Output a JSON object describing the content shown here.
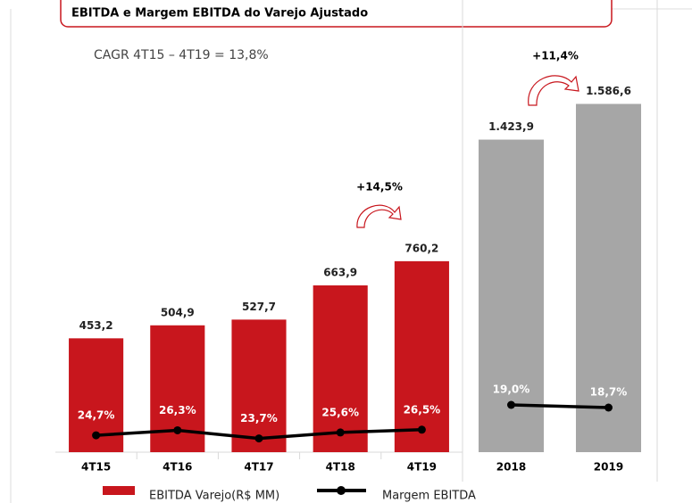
{
  "chart_data": [
    {
      "type": "bar",
      "title": "EBITDA e Margem EBITDA do Varejo Ajustado",
      "subtitle": "CAGR 4T15 – 4T19 = 13,8%",
      "annotation": "+14,5%",
      "categories": [
        "4T15",
        "4T16",
        "4T17",
        "4T18",
        "4T19"
      ],
      "ylim": [
        0,
        1800
      ],
      "y2lim": [
        19.3,
        164
      ],
      "series": [
        {
          "name": "EBITDA Varejo(R$ MM)",
          "color": "#c8161d",
          "values": [
            453.2,
            504.9,
            527.7,
            663.9,
            760.2
          ],
          "value_labels": [
            "453,2",
            "504,9",
            "527,7",
            "663,9",
            "760,2"
          ]
        },
        {
          "name": "Margem EBITDA",
          "color": "#000000",
          "axis": "y2",
          "values": [
            24.7,
            26.3,
            23.7,
            25.6,
            26.5
          ],
          "value_labels": [
            "24,7%",
            "26,3%",
            "23,7%",
            "25,6%",
            "26,5%"
          ]
        }
      ]
    },
    {
      "type": "bar",
      "annotation": "+11,4%",
      "categories": [
        "2018",
        "2019"
      ],
      "ylim": [
        0,
        2060
      ],
      "y2lim": [
        13.7,
        64.4
      ],
      "series": [
        {
          "name": "EBITDA Varejo(R$ MM)",
          "color": "#a6a6a6",
          "values": [
            1423.9,
            1586.6
          ],
          "value_labels": [
            "1.423,9",
            "1.586,6"
          ]
        },
        {
          "name": "Margem EBITDA",
          "color": "#000000",
          "axis": "y2",
          "values": [
            19.0,
            18.7
          ],
          "value_labels": [
            "19,0%",
            "18,7%"
          ]
        }
      ]
    }
  ]
}
